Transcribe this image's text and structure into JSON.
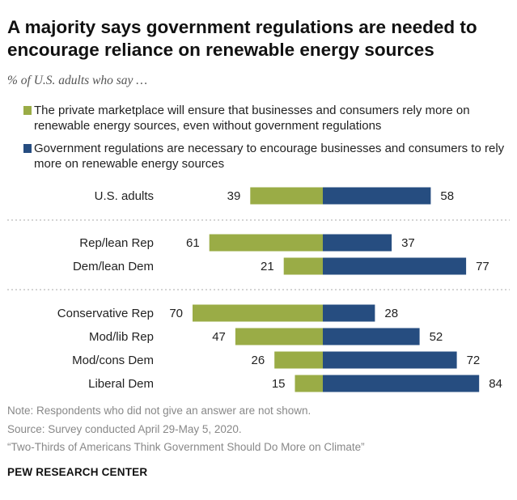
{
  "title": "A majority says government regulations are needed to encourage reliance on renewable energy sources",
  "subtitle": "% of U.S. adults who say …",
  "colors": {
    "private": "#9aac46",
    "government": "#264d80"
  },
  "chart_data": {
    "type": "bar",
    "orientation": "horizontal-diverging",
    "series": [
      {
        "name": "The private marketplace will ensure that businesses and consumers rely more on renewable energy sources, even without government regulations",
        "values": [
          39,
          61,
          21,
          70,
          47,
          26,
          15
        ]
      },
      {
        "name": "Government regulations are necessary to encourage businesses and consumers to rely more on renewable energy sources",
        "values": [
          58,
          37,
          77,
          28,
          52,
          72,
          84
        ]
      }
    ],
    "categories": [
      "U.S. adults",
      "Rep/lean Rep",
      "Dem/lean Dem",
      "Conservative Rep",
      "Mod/lib Rep",
      "Mod/cons Dem",
      "Liberal Dem"
    ],
    "groups": [
      [
        0
      ],
      [
        1,
        2
      ],
      [
        3,
        4,
        5,
        6
      ]
    ],
    "xlim": [
      -100,
      100
    ],
    "grid": false,
    "legend_position": "top"
  },
  "notes": {
    "note": "Note: Respondents who did not give an answer are not shown.",
    "source": "Source: Survey conducted April 29-May 5, 2020.",
    "report": "“Two-Thirds of Americans Think Government Should Do More on Climate”"
  },
  "brand": "PEW RESEARCH CENTER"
}
